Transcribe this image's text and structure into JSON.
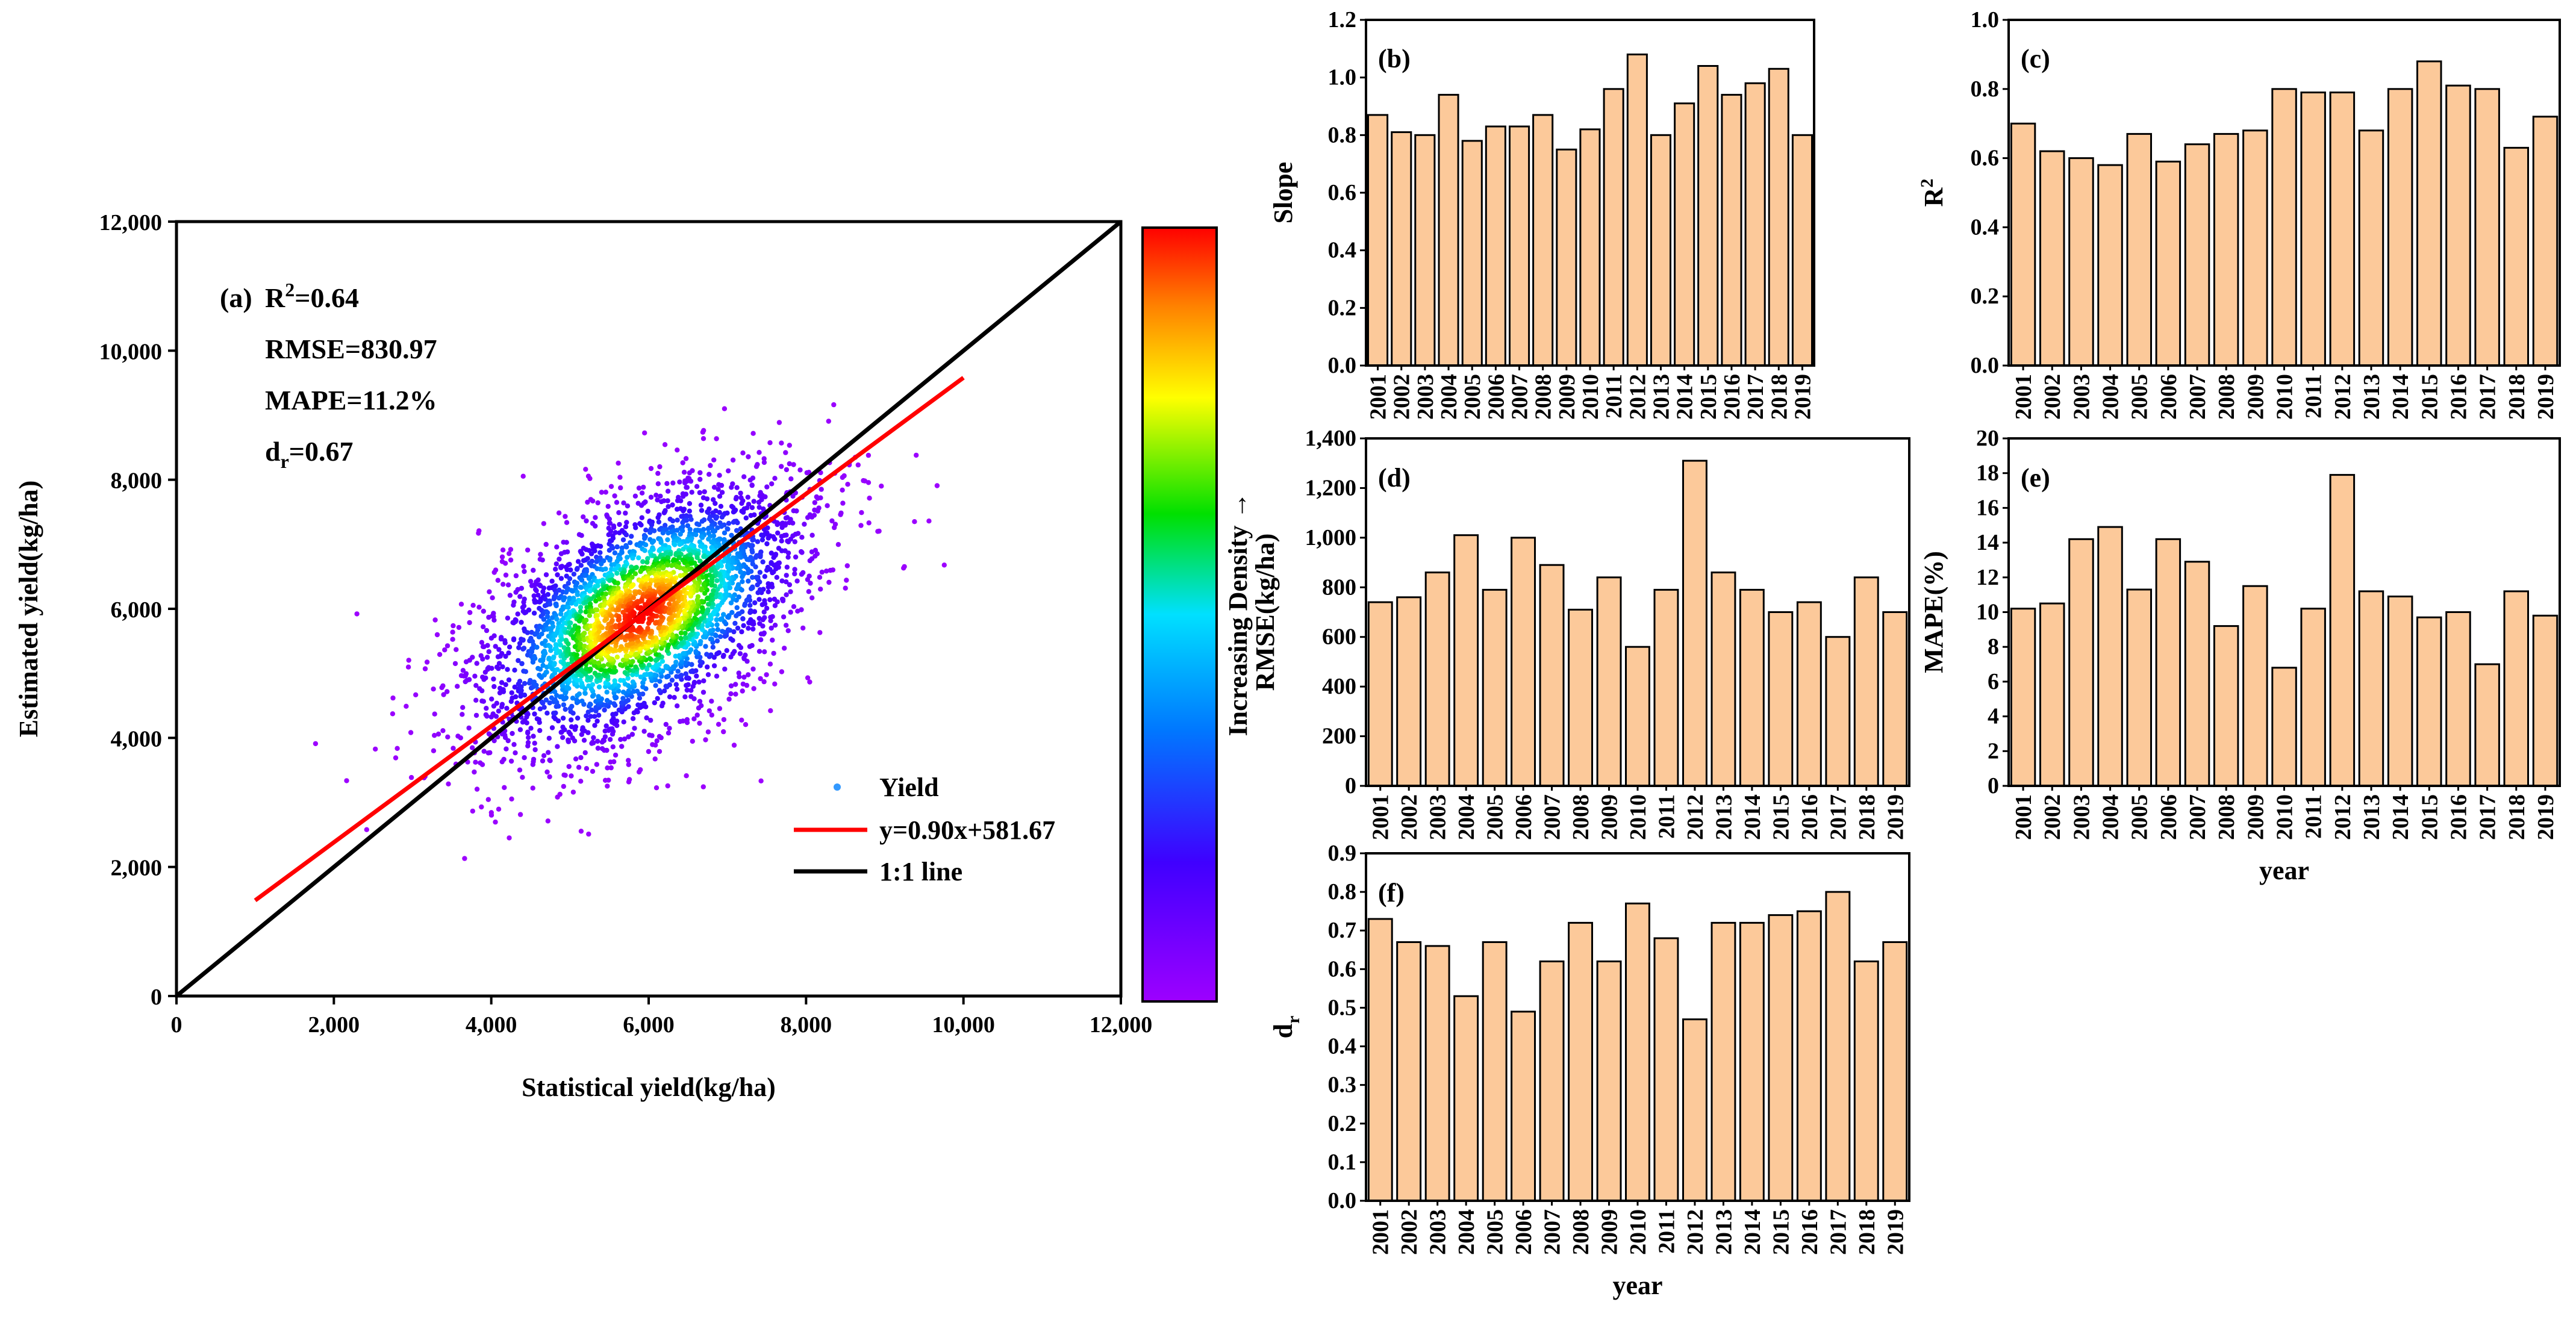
{
  "chart_data": [
    {
      "id": "a",
      "type": "scatter",
      "panel_label": "(a)",
      "xlabel": "Statistical yield(kg/ha)",
      "ylabel": "Estimated yield(kg/ha)",
      "xlim": [
        0,
        12000
      ],
      "ylim": [
        0,
        12000
      ],
      "ticks": [
        0,
        2000,
        4000,
        6000,
        8000,
        10000,
        12000
      ],
      "tick_labels": [
        "0",
        "2,000",
        "4,000",
        "6,000",
        "8,000",
        "10,000",
        "12,000"
      ],
      "stats": {
        "r2_prefix": "R",
        "r2_sup": "2",
        "r2_value": "=0.64",
        "rmse": "RMSE=830.97",
        "mape": "MAPE=11.2%",
        "dr_prefix": "d",
        "dr_sub": "r",
        "dr_value": "=0.67"
      },
      "legend": {
        "points": "Yield",
        "fit": "y=0.90x+581.67",
        "identity": "1:1 line"
      },
      "fit_line": {
        "slope": 0.9,
        "intercept": 581.67,
        "x_range": [
          1000,
          10000
        ]
      },
      "identity_line": {
        "x_range": [
          0,
          12000
        ]
      },
      "cloud": {
        "center_x": 5900,
        "center_y": 5900,
        "point_count": 3400
      },
      "colorbar_label": "Increasing Density →",
      "colors": {
        "fit": "#ff0000",
        "identity": "#000000",
        "low_density": "#9900ff",
        "high_density": "#ff0000",
        "legend_dot": "#3399ff"
      }
    },
    {
      "id": "b",
      "type": "bar",
      "panel_label": "(b)",
      "ylabel": "Slope",
      "ylim": [
        0,
        1.2
      ],
      "yticks": [
        "0.0",
        "0.2",
        "0.4",
        "0.6",
        "0.8",
        "1.0",
        "1.2"
      ],
      "years": [
        "2001",
        "2002",
        "2003",
        "2004",
        "2005",
        "2006",
        "2007",
        "2008",
        "2009",
        "2010",
        "2011",
        "2012",
        "2013",
        "2014",
        "2015",
        "2016",
        "2017",
        "2018",
        "2019"
      ],
      "values": [
        0.87,
        0.81,
        0.8,
        0.94,
        0.78,
        0.83,
        0.83,
        0.87,
        0.75,
        0.82,
        0.96,
        1.08,
        0.8,
        0.91,
        1.04,
        0.94,
        0.98,
        1.03,
        0.8
      ],
      "show_xlabel": false
    },
    {
      "id": "c",
      "type": "bar",
      "panel_label": "(c)",
      "ylabel": "R",
      "ylabel_sup": "2",
      "ylim": [
        0,
        1.0
      ],
      "yticks": [
        "0.0",
        "0.2",
        "0.4",
        "0.6",
        "0.8",
        "1.0"
      ],
      "years": [
        "2001",
        "2002",
        "2003",
        "2004",
        "2005",
        "2006",
        "2007",
        "2008",
        "2009",
        "2010",
        "2011",
        "2012",
        "2013",
        "2014",
        "2015",
        "2016",
        "2017",
        "2018",
        "2019"
      ],
      "values": [
        0.7,
        0.62,
        0.6,
        0.58,
        0.67,
        0.59,
        0.64,
        0.67,
        0.68,
        0.8,
        0.79,
        0.79,
        0.68,
        0.8,
        0.88,
        0.81,
        0.8,
        0.63,
        0.72
      ],
      "show_xlabel": false
    },
    {
      "id": "d",
      "type": "bar",
      "panel_label": "(d)",
      "ylabel": "RMSE(kg/ha)",
      "ylim": [
        0,
        1400
      ],
      "yticks": [
        "0",
        "200",
        "400",
        "600",
        "800",
        "1,000",
        "1,200",
        "1,400"
      ],
      "years": [
        "2001",
        "2002",
        "2003",
        "2004",
        "2005",
        "2006",
        "2007",
        "2008",
        "2009",
        "2010",
        "2011",
        "2012",
        "2013",
        "2014",
        "2015",
        "2016",
        "2017",
        "2018",
        "2019"
      ],
      "values": [
        740,
        760,
        860,
        1010,
        790,
        1000,
        890,
        710,
        840,
        560,
        790,
        1310,
        860,
        790,
        700,
        740,
        600,
        840,
        700
      ],
      "show_xlabel": false
    },
    {
      "id": "e",
      "type": "bar",
      "panel_label": "(e)",
      "ylabel": "MAPE(%)",
      "ylim": [
        0,
        20
      ],
      "yticks": [
        "0",
        "2",
        "4",
        "6",
        "8",
        "10",
        "12",
        "14",
        "16",
        "18",
        "20"
      ],
      "years": [
        "2001",
        "2002",
        "2003",
        "2004",
        "2005",
        "2006",
        "2007",
        "2008",
        "2009",
        "2010",
        "2011",
        "2012",
        "2013",
        "2014",
        "2015",
        "2016",
        "2017",
        "2018",
        "2019"
      ],
      "values": [
        10.2,
        10.5,
        14.2,
        14.9,
        11.3,
        14.2,
        12.9,
        9.2,
        11.5,
        6.8,
        10.2,
        17.9,
        11.2,
        10.9,
        9.7,
        10.0,
        7.0,
        11.2,
        9.8
      ],
      "xlabel": "year",
      "show_xlabel": true
    },
    {
      "id": "f",
      "type": "bar",
      "panel_label": "(f)",
      "ylabel": "d",
      "ylabel_sub": "r",
      "ylim": [
        0,
        0.9
      ],
      "yticks": [
        "0.0",
        "0.1",
        "0.2",
        "0.3",
        "0.4",
        "0.5",
        "0.6",
        "0.7",
        "0.8",
        "0.9"
      ],
      "years": [
        "2001",
        "2002",
        "2003",
        "2004",
        "2005",
        "2006",
        "2007",
        "2008",
        "2009",
        "2010",
        "2011",
        "2012",
        "2013",
        "2014",
        "2015",
        "2016",
        "2017",
        "2018",
        "2019"
      ],
      "values": [
        0.73,
        0.67,
        0.66,
        0.53,
        0.67,
        0.49,
        0.62,
        0.72,
        0.62,
        0.77,
        0.68,
        0.47,
        0.72,
        0.72,
        0.74,
        0.75,
        0.8,
        0.62,
        0.67
      ],
      "xlabel": "year",
      "show_xlabel": true
    }
  ],
  "colors": {
    "bar_fill": "#fcc99a",
    "bar_stroke": "#000000",
    "axis": "#000000"
  }
}
